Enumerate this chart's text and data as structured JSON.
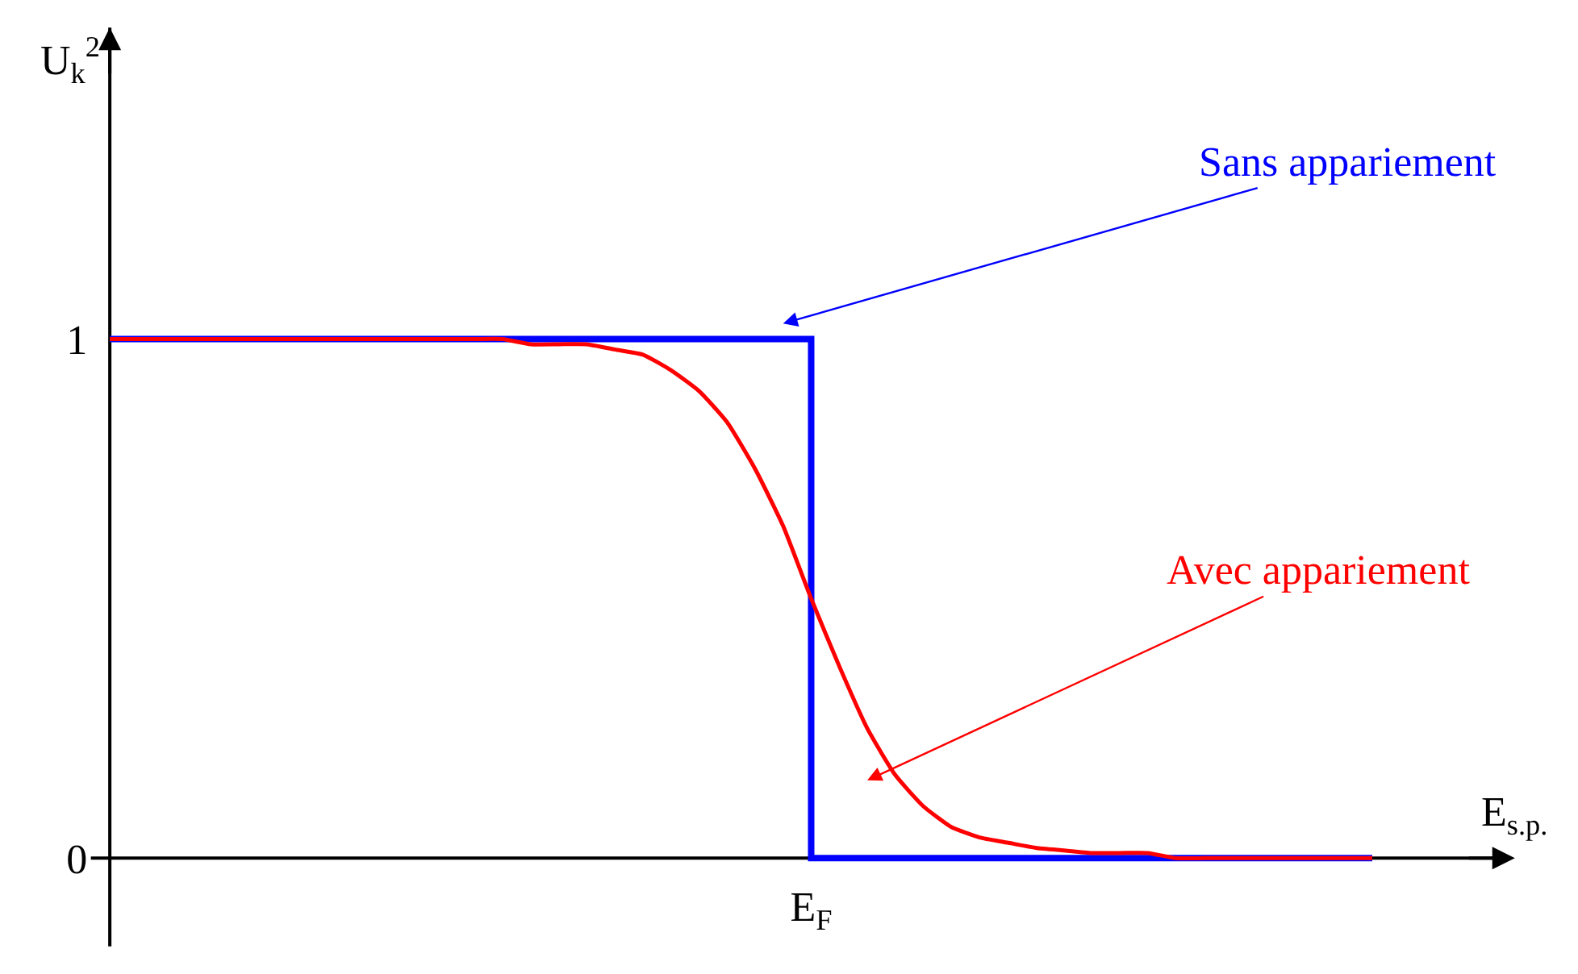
{
  "chart_data": {
    "type": "line",
    "xlabel": "E$_{s.p.}$",
    "ylabel": "U$_{k}$$^{2}$",
    "categories": [
      null,
      null,
      null,
      null,
      null,
      null,
      null,
      null,
      null,
      null,
      null,
      null,
      null,
      null,
      null,
      null,
      null,
      null,
      null,
      null,
      null,
      null,
      null,
      null,
      null,
      "E$_{F}$",
      null,
      null,
      null,
      null,
      null,
      null,
      null,
      null,
      null,
      null,
      null,
      null,
      null,
      null,
      null,
      null,
      null,
      null,
      null,
      null
    ],
    "series": [
      {
        "name": "Sans appariement",
        "type": "step",
        "color": "#0000ff",
        "values": [
          1,
          1,
          1,
          1,
          1,
          1,
          1,
          1,
          1,
          1,
          1,
          1,
          1,
          1,
          1,
          1,
          1,
          1,
          1,
          1,
          1,
          1,
          1,
          1,
          1,
          0,
          0,
          0,
          0,
          0,
          0,
          0,
          0,
          0,
          0,
          0,
          0,
          0,
          0,
          0,
          0,
          0,
          0,
          0,
          0,
          0
        ]
      },
      {
        "name": "Avec appariement",
        "type": "line",
        "color": "#ff0000",
        "values": [
          1,
          1,
          1,
          1,
          1,
          1,
          1,
          1,
          1,
          1,
          1,
          1,
          1,
          1,
          1,
          0.99,
          0.99,
          0.99,
          0.98,
          0.97,
          0.94,
          0.9,
          0.84,
          0.75,
          0.64,
          0.5,
          0.37,
          0.25,
          0.16,
          0.1,
          0.06,
          0.04,
          0.03,
          0.02,
          0.015,
          0.01,
          0.01,
          0.01,
          0,
          0,
          0,
          0,
          0,
          0,
          0,
          0
        ]
      }
    ],
    "ylim": [
      -0.17,
      1.6
    ],
    "yticks": [
      0,
      1
    ],
    "legend": false,
    "marker": "none",
    "line_style": "solid"
  }
}
